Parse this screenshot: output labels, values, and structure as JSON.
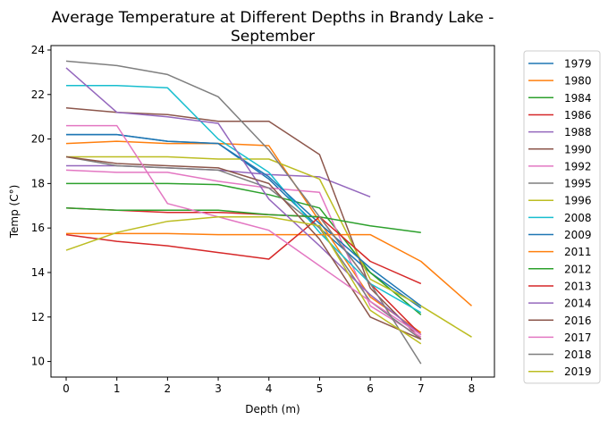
{
  "chart_data": {
    "type": "line",
    "title": "Average Temperature at Different Depths in Brandy Lake -\nSeptember",
    "xlabel": "Depth (m)",
    "ylabel": "Temp (C°)",
    "xlim": [
      -0.3,
      8.45
    ],
    "ylim": [
      9.3,
      24.2
    ],
    "xticks": [
      0,
      1,
      2,
      3,
      4,
      5,
      6,
      7,
      8
    ],
    "yticks": [
      10,
      12,
      14,
      16,
      18,
      20,
      22,
      24
    ],
    "grid": false,
    "legend_position": "outside-right",
    "series": [
      {
        "name": "1979",
        "color": "#1f77b4",
        "x": [
          0,
          1,
          2,
          3,
          4,
          5,
          6,
          7
        ],
        "y": [
          20.2,
          20.2,
          19.9,
          19.8,
          18.2,
          16.0,
          14.0,
          12.4
        ]
      },
      {
        "name": "1980",
        "color": "#ff7f0e",
        "x": [
          0,
          1,
          2,
          3,
          4,
          5,
          6,
          7
        ],
        "y": [
          19.8,
          19.9,
          19.8,
          19.8,
          19.7,
          16.3,
          12.9,
          11.3
        ]
      },
      {
        "name": "1984",
        "color": "#2ca02c",
        "x": [
          0,
          1,
          2,
          3,
          4,
          5,
          6,
          7
        ],
        "y": [
          18.0,
          18.0,
          18.0,
          17.95,
          17.5,
          16.9,
          14.0,
          12.1
        ]
      },
      {
        "name": "1986",
        "color": "#d62728",
        "x": [
          0,
          1,
          2,
          3,
          4,
          5,
          6,
          7
        ],
        "y": [
          16.9,
          16.8,
          16.7,
          16.7,
          16.6,
          16.5,
          13.5,
          11.2
        ]
      },
      {
        "name": "1988",
        "color": "#9467bd",
        "x": [
          0,
          1,
          2,
          3,
          4,
          5,
          6
        ],
        "y": [
          18.8,
          18.8,
          18.7,
          18.6,
          18.4,
          18.3,
          17.4
        ]
      },
      {
        "name": "1990",
        "color": "#8c564b",
        "x": [
          0,
          1,
          2,
          3,
          4,
          5,
          6,
          7
        ],
        "y": [
          21.4,
          21.2,
          21.1,
          20.8,
          20.8,
          19.3,
          13.3,
          11.0
        ]
      },
      {
        "name": "1992",
        "color": "#e377c2",
        "x": [
          0,
          1,
          2,
          3,
          4,
          5,
          6,
          7
        ],
        "y": [
          18.6,
          18.5,
          18.5,
          18.1,
          17.8,
          17.6,
          12.5,
          11.1
        ]
      },
      {
        "name": "1995",
        "color": "#7f7f7f",
        "x": [
          0,
          1,
          2,
          3,
          4,
          5,
          6,
          7
        ],
        "y": [
          19.2,
          18.8,
          18.7,
          18.6,
          17.8,
          16.0,
          12.7,
          11.0
        ]
      },
      {
        "name": "1996",
        "color": "#bcbd22",
        "x": [
          0,
          1,
          2,
          3,
          4,
          5,
          6,
          7,
          8
        ],
        "y": [
          19.2,
          19.2,
          19.2,
          19.1,
          19.1,
          18.2,
          13.7,
          12.5,
          11.1
        ]
      },
      {
        "name": "2008",
        "color": "#17becf",
        "x": [
          0,
          1,
          2,
          3,
          4,
          5,
          6,
          7
        ],
        "y": [
          22.4,
          22.4,
          22.3,
          20.0,
          18.5,
          15.8,
          13.5,
          12.2
        ]
      },
      {
        "name": "2009",
        "color": "#1f77b4",
        "x": [
          0,
          1,
          2,
          3,
          4,
          5,
          6,
          7
        ],
        "y": [
          20.2,
          20.2,
          19.9,
          19.8,
          18.3,
          16.2,
          14.2,
          12.5
        ]
      },
      {
        "name": "2011",
        "color": "#ff7f0e",
        "x": [
          0,
          1,
          2,
          3,
          4,
          5,
          6,
          7,
          8
        ],
        "y": [
          15.75,
          15.75,
          15.75,
          15.7,
          15.7,
          15.7,
          15.7,
          14.5,
          12.5
        ]
      },
      {
        "name": "2012",
        "color": "#2ca02c",
        "x": [
          0,
          1,
          2,
          3,
          4,
          5,
          6,
          7
        ],
        "y": [
          16.9,
          16.8,
          16.8,
          16.8,
          16.6,
          16.5,
          16.1,
          15.8
        ]
      },
      {
        "name": "2013",
        "color": "#d62728",
        "x": [
          0,
          1,
          2,
          3,
          4,
          5,
          6,
          7
        ],
        "y": [
          15.7,
          15.4,
          15.2,
          14.9,
          14.6,
          16.5,
          14.5,
          13.5
        ]
      },
      {
        "name": "2014",
        "color": "#9467bd",
        "x": [
          0,
          1,
          2,
          3,
          4,
          5,
          6,
          7
        ],
        "y": [
          23.2,
          21.2,
          21.0,
          20.7,
          17.3,
          15.2,
          13.0,
          11.2
        ]
      },
      {
        "name": "2016",
        "color": "#8c564b",
        "x": [
          0,
          1,
          2,
          3,
          4,
          5,
          6,
          7
        ],
        "y": [
          19.2,
          18.9,
          18.8,
          18.7,
          18.0,
          15.5,
          12.0,
          11.0
        ]
      },
      {
        "name": "2017",
        "color": "#e377c2",
        "x": [
          0,
          1,
          2,
          3,
          4,
          5,
          6,
          7
        ],
        "y": [
          20.6,
          20.6,
          17.1,
          16.5,
          15.9,
          14.3,
          12.7,
          11.2
        ]
      },
      {
        "name": "2018",
        "color": "#7f7f7f",
        "x": [
          0,
          1,
          2,
          3,
          4,
          5,
          6,
          7
        ],
        "y": [
          23.5,
          23.3,
          22.9,
          21.9,
          19.5,
          16.5,
          13.5,
          9.9
        ]
      },
      {
        "name": "2019",
        "color": "#bcbd22",
        "x": [
          0,
          1,
          2,
          3,
          4,
          5,
          6,
          7
        ],
        "y": [
          15.0,
          15.8,
          16.3,
          16.5,
          16.5,
          16.1,
          12.3,
          10.8
        ]
      }
    ]
  }
}
